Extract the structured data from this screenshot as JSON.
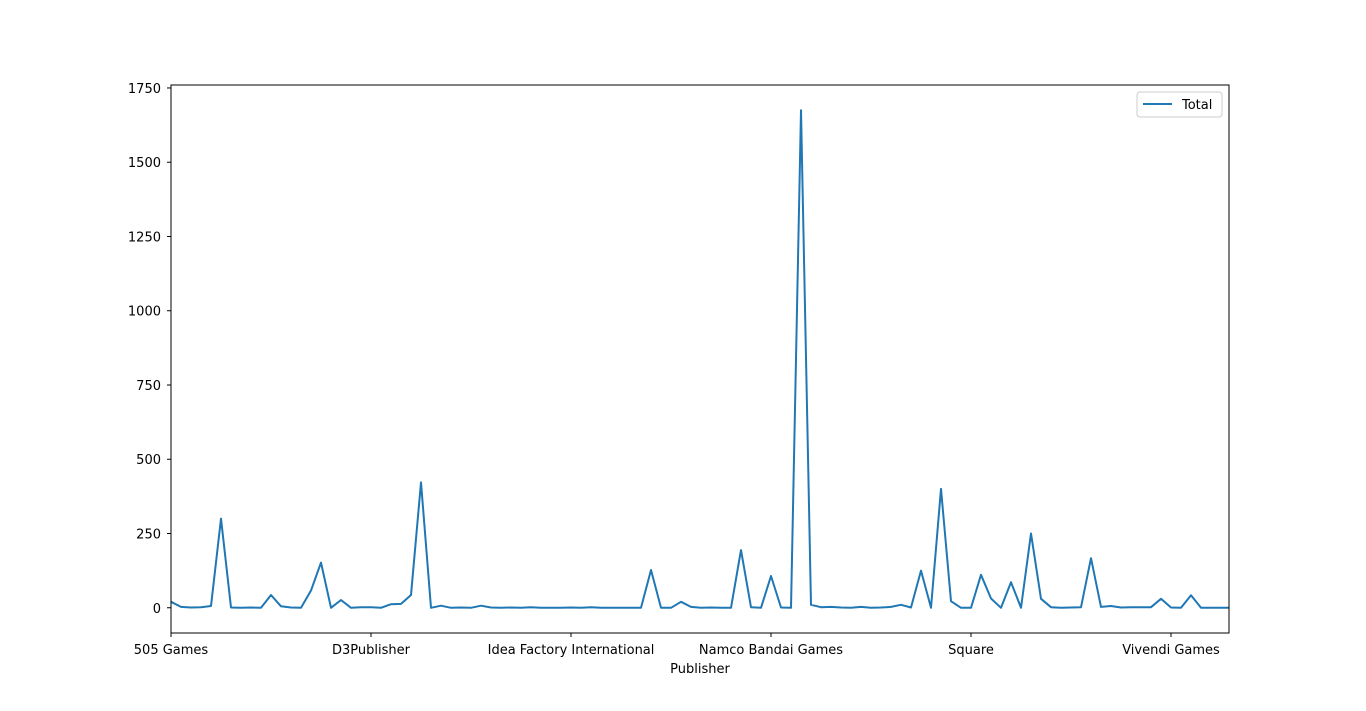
{
  "chart_data": {
    "type": "line",
    "xlabel": "Publisher",
    "ylabel": "",
    "ylim": [
      -85,
      1760
    ],
    "yticks": [
      0,
      250,
      500,
      750,
      1000,
      1250,
      1500,
      1750
    ],
    "xticks": [
      {
        "index": 0,
        "label": "505 Games"
      },
      {
        "index": 20,
        "label": "D3Publisher"
      },
      {
        "index": 40,
        "label": "Idea Factory International"
      },
      {
        "index": 60,
        "label": "Namco Bandai Games"
      },
      {
        "index": 80,
        "label": "Square"
      },
      {
        "index": 100,
        "label": "Vivendi Games"
      }
    ],
    "legend": {
      "position": "top-right"
    },
    "series": [
      {
        "name": "Total",
        "color": "#1f77b4",
        "values": [
          20,
          3,
          1,
          2,
          6,
          300,
          1,
          0,
          1,
          0,
          43,
          5,
          1,
          0,
          58,
          152,
          0,
          26,
          0,
          2,
          2,
          0,
          12,
          13,
          43,
          422,
          0,
          7,
          0,
          1,
          0,
          7,
          1,
          0,
          1,
          0,
          2,
          0,
          0,
          0,
          1,
          0,
          2,
          0,
          0,
          0,
          0,
          0,
          127,
          0,
          0,
          20,
          3,
          0,
          1,
          0,
          0,
          194,
          2,
          0,
          107,
          1,
          0,
          1675,
          10,
          2,
          3,
          1,
          0,
          3,
          0,
          1,
          3,
          10,
          1,
          125,
          0,
          400,
          22,
          0,
          0,
          111,
          31,
          0,
          86,
          0,
          250,
          30,
          2,
          0,
          1,
          2,
          167,
          3,
          6,
          1,
          2,
          2,
          2,
          30,
          1,
          0,
          42,
          0,
          0,
          0,
          0
        ]
      }
    ]
  }
}
